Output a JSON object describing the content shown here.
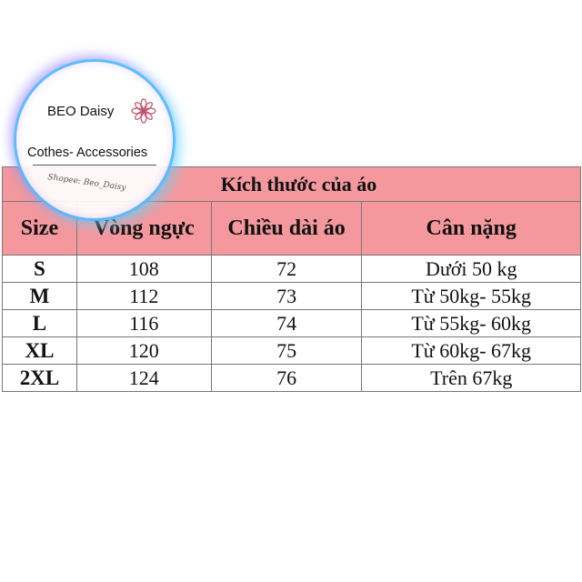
{
  "logo": {
    "title": "BEO Daisy",
    "subtitle": "Cothes- Accessories",
    "tagline": "Shopee: Beo_Daisy"
  },
  "table": {
    "banner": "Kích thước của áo",
    "headers": [
      "Size",
      "Vòng ngực",
      "Chiều dài áo",
      "Cân nặng"
    ],
    "rows": [
      [
        "S",
        "108",
        "72",
        "Dưới 50 kg"
      ],
      [
        "M",
        "112",
        "73",
        "Từ 50kg- 55kg"
      ],
      [
        "L",
        "116",
        "74",
        "Từ 55kg- 60kg"
      ],
      [
        "XL",
        "120",
        "75",
        "Từ 60kg- 67kg"
      ],
      [
        "2XL",
        "124",
        "76",
        "Trên 67kg"
      ]
    ]
  },
  "colors": {
    "header_bg": "#f4989d",
    "logo_glow": "#50beff"
  },
  "icons": {
    "logo_flower": "flower-icon"
  }
}
